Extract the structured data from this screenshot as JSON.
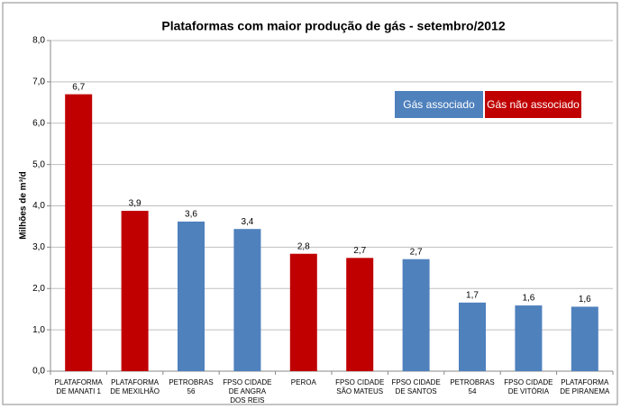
{
  "chart_data": {
    "type": "bar",
    "title": "Plataformas com maior produção de gás - setembro/2012",
    "y_label": "Milhões de m³/d",
    "categories": [
      "PLATAFORMA DE MANATI 1",
      "PLATAFORMA DE MEXILHÃO",
      "PETROBRAS 56",
      "FPSO CIDADE DE ANGRA DOS REIS",
      "PEROA",
      "FPSO CIDADE SÃO MATEUS",
      "FPSO CIDADE DE SANTOS",
      "PETROBRAS 54",
      "FPSO CIDADE DE VITÓRIA",
      "PLATAFORMA DE PIRANEMA"
    ],
    "series": [
      {
        "name": "Gás associado",
        "color": "#4f81bd",
        "values": [
          null,
          null,
          3.62,
          3.44,
          null,
          null,
          2.71,
          1.66,
          1.59,
          1.56
        ],
        "value_labels": [
          null,
          null,
          "3,6",
          "3,4",
          null,
          null,
          "2,7",
          "1,7",
          "1,6",
          "1,6"
        ]
      },
      {
        "name": "Gás não associado",
        "color": "#c00000",
        "values": [
          6.7,
          3.88,
          null,
          null,
          2.84,
          2.74,
          null,
          null,
          null,
          null
        ],
        "value_labels": [
          "6,7",
          "3,9",
          null,
          null,
          "2,8",
          "2,7",
          null,
          null,
          null,
          null
        ]
      }
    ],
    "ylim": [
      0,
      8
    ],
    "yticks": [
      {
        "value": 0,
        "label": "0,0"
      },
      {
        "value": 1,
        "label": "1,0"
      },
      {
        "value": 2,
        "label": "2,0"
      },
      {
        "value": 3,
        "label": "3,0"
      },
      {
        "value": 4,
        "label": "4,0"
      },
      {
        "value": 5,
        "label": "5,0"
      },
      {
        "value": 6,
        "label": "6,0"
      },
      {
        "value": 7,
        "label": "7,0"
      },
      {
        "value": 8,
        "label": "8,0"
      }
    ],
    "grid": true
  }
}
